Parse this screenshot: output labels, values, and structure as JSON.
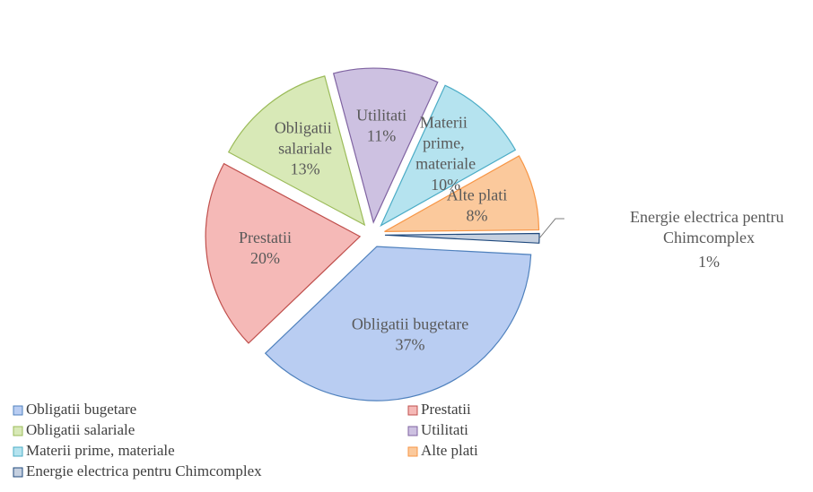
{
  "chart_data": {
    "type": "pie",
    "categories": [
      "Obligatii bugetare",
      "Prestatii",
      "Obligatii salariale",
      "Utilitati",
      "Materii prime, materiale",
      "Alte plati",
      "Energie electrica pentru Chimcomplex"
    ],
    "values": [
      37,
      20,
      13,
      11,
      10,
      8,
      1
    ],
    "value_labels": [
      "37%",
      "20%",
      "13%",
      "11%",
      "10%",
      "8%",
      "1%"
    ],
    "colors": [
      "#b9cdf2",
      "#f5b9b7",
      "#d8e9b7",
      "#cdc1e1",
      "#b5e3ef",
      "#fbc99c",
      "#c5d0e0"
    ],
    "edge_colors": [
      "#4f81bd",
      "#c0504d",
      "#9bbb59",
      "#8064a2",
      "#4bacc6",
      "#f79646",
      "#1f497d"
    ],
    "legend": "bottom"
  }
}
